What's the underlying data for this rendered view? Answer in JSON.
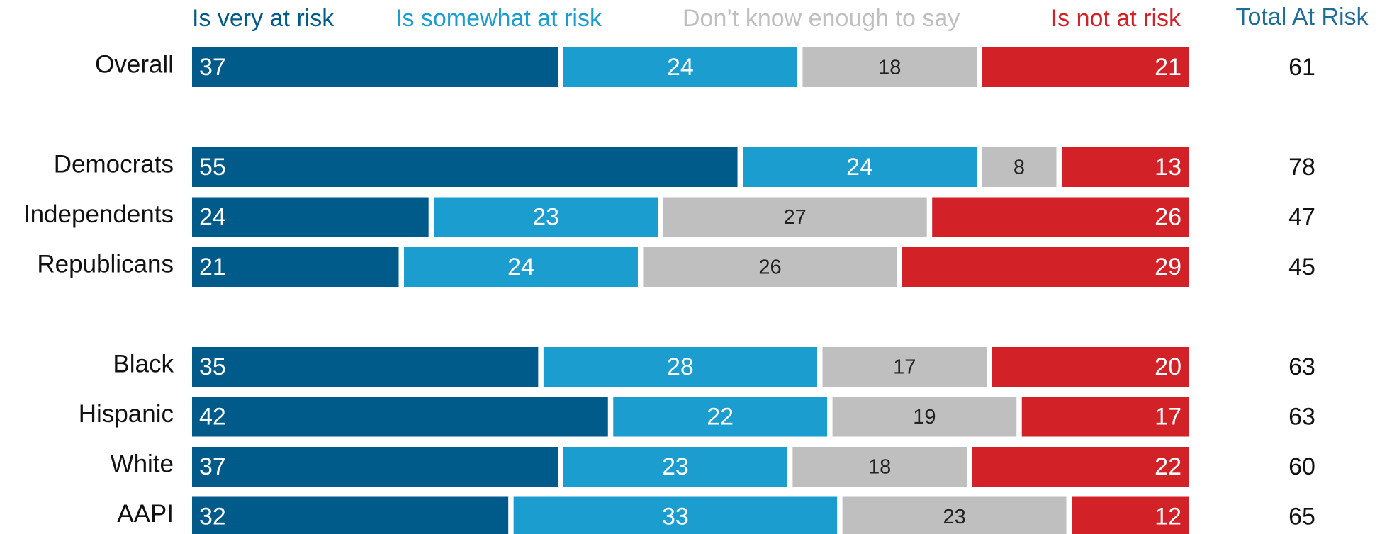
{
  "chart_data": {
    "type": "stacked-bar-horizontal",
    "categories": [
      "Overall",
      null,
      "Democrats",
      "Independents",
      "Republicans",
      null,
      "Black",
      "Hispanic",
      "White",
      "AAPI"
    ],
    "series": [
      {
        "name": "Is very at risk",
        "color": "#005b8a",
        "values": [
          37,
          null,
          55,
          24,
          21,
          null,
          35,
          42,
          37,
          32
        ]
      },
      {
        "name": "Is somewhat at risk",
        "color": "#1b9dd0",
        "values": [
          24,
          null,
          24,
          23,
          24,
          null,
          28,
          22,
          23,
          33
        ]
      },
      {
        "name": "Don’t know enough to say",
        "color": "#bfbfbf",
        "values": [
          18,
          null,
          8,
          27,
          26,
          null,
          17,
          19,
          18,
          23
        ]
      },
      {
        "name": "Is not at risk",
        "color": "#d32128",
        "values": [
          21,
          null,
          13,
          26,
          29,
          null,
          20,
          17,
          22,
          12
        ]
      }
    ],
    "xlim": [
      0,
      100
    ],
    "totals": {
      "title": "Total At Risk",
      "color": "#1e6c98",
      "values": [
        61,
        null,
        78,
        47,
        45,
        null,
        63,
        63,
        60,
        65
      ]
    }
  }
}
